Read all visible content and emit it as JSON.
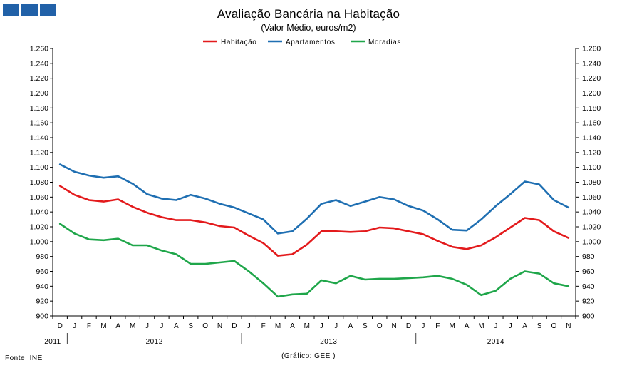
{
  "header": {
    "title": "Avaliação Bancária na Habitação",
    "subtitle": "(Valor Médio, euros/m2)"
  },
  "footer": {
    "source": "Fonte: INE",
    "credit": "(Gráfico: GEE )"
  },
  "chart_data": {
    "type": "line",
    "title": "Avaliação Bancária na Habitação",
    "subtitle": "(Valor Médio, euros/m2)",
    "ylim": [
      900,
      1260
    ],
    "y_ticks": [
      "900",
      "920",
      "940",
      "960",
      "980",
      "1.000",
      "1.020",
      "1.040",
      "1.060",
      "1.080",
      "1.100",
      "1.120",
      "1.140",
      "1.160",
      "1.180",
      "1.200",
      "1.220",
      "1.240",
      "1.260"
    ],
    "categories": [
      "D",
      "J",
      "F",
      "M",
      "A",
      "M",
      "J",
      "J",
      "A",
      "S",
      "O",
      "N",
      "D",
      "J",
      "F",
      "M",
      "A",
      "M",
      "J",
      "J",
      "A",
      "S",
      "O",
      "N",
      "D",
      "J",
      "F",
      "M",
      "A",
      "M",
      "J",
      "J",
      "A",
      "S",
      "O",
      "N"
    ],
    "years": [
      {
        "label": "2011",
        "start": 0,
        "end": 0
      },
      {
        "label": "2012",
        "start": 1,
        "end": 12
      },
      {
        "label": "2013",
        "start": 13,
        "end": 24
      },
      {
        "label": "2014",
        "start": 25,
        "end": 35
      }
    ],
    "legend": "top-center",
    "series": [
      {
        "name": "Habitação",
        "color": "#e31a1c",
        "values": [
          1075,
          1063,
          1056,
          1054,
          1057,
          1047,
          1039,
          1033,
          1029,
          1029,
          1026,
          1021,
          1019,
          1008,
          998,
          981,
          983,
          996,
          1014,
          1014,
          1013,
          1014,
          1019,
          1018,
          1014,
          1010,
          1001,
          993,
          990,
          995,
          1006,
          1019,
          1032,
          1029,
          1014,
          1005
        ]
      },
      {
        "name": "Apartamentos",
        "color": "#1f6fb2",
        "values": [
          1104,
          1094,
          1089,
          1086,
          1088,
          1078,
          1064,
          1058,
          1056,
          1063,
          1058,
          1051,
          1046,
          1038,
          1030,
          1011,
          1014,
          1031,
          1051,
          1056,
          1048,
          1054,
          1060,
          1057,
          1048,
          1042,
          1030,
          1016,
          1015,
          1030,
          1048,
          1064,
          1081,
          1077,
          1056,
          1046
        ]
      },
      {
        "name": "Moradias",
        "color": "#1fa64a",
        "values": [
          1024,
          1011,
          1003,
          1002,
          1004,
          995,
          995,
          988,
          983,
          970,
          970,
          972,
          974,
          960,
          944,
          926,
          929,
          930,
          948,
          944,
          954,
          949,
          950,
          950,
          951,
          952,
          954,
          950,
          942,
          928,
          934,
          950,
          960,
          957,
          944,
          940
        ]
      }
    ]
  }
}
